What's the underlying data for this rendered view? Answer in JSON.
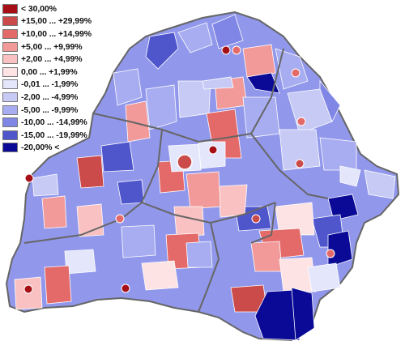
{
  "legend": {
    "items": [
      {
        "label": "< 30,00%",
        "color": "#a50f15"
      },
      {
        "label": "+15,00 ... +29,99%",
        "color": "#cb4a4a"
      },
      {
        "label": "+10,00 ... +14,99%",
        "color": "#e46a6a"
      },
      {
        "label": "+5,00 ... +9,99%",
        "color": "#f29a9a"
      },
      {
        "label": "+2,00 ... +4,99%",
        "color": "#f9c1c1"
      },
      {
        "label": "0,00 ... +1,99%",
        "color": "#fde3e3"
      },
      {
        "label": "-0,01 ... -1,99%",
        "color": "#e4e6fb"
      },
      {
        "label": "-2,00 ... -4,99%",
        "color": "#c6caf5"
      },
      {
        "label": "-5,00 ... -9,99%",
        "color": "#a7adf0"
      },
      {
        "label": "-10,00 ... -14,99%",
        "color": "#7f86e6"
      },
      {
        "label": "-15,00 ... -19,99%",
        "color": "#4f56cc"
      },
      {
        "label": "-20,00% <",
        "color": "#0a0a96"
      }
    ]
  },
  "colors": {
    "border": "#777777",
    "region_border": "#666666",
    "base": "#8d93ea"
  }
}
